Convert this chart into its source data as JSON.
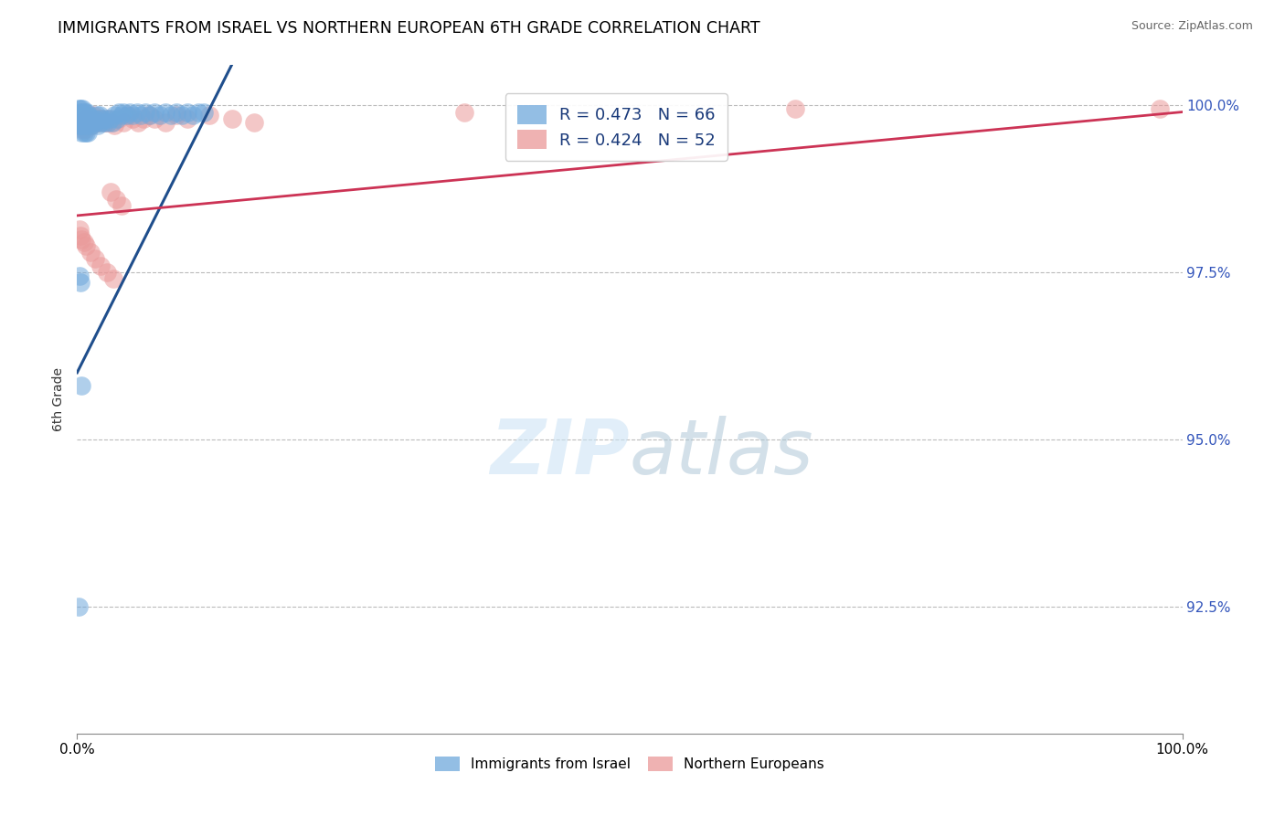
{
  "title": "IMMIGRANTS FROM ISRAEL VS NORTHERN EUROPEAN 6TH GRADE CORRELATION CHART",
  "source": "Source: ZipAtlas.com",
  "ylabel": "6th Grade",
  "xmin": 0.0,
  "xmax": 1.0,
  "ymin": 0.906,
  "ymax": 1.006,
  "yticks": [
    0.925,
    0.95,
    0.975,
    1.0
  ],
  "ytick_labels": [
    "92.5%",
    "95.0%",
    "97.5%",
    "100.0%"
  ],
  "blue_R": 0.473,
  "blue_N": 66,
  "pink_R": 0.424,
  "pink_N": 52,
  "blue_color": "#6fa8dc",
  "pink_color": "#ea9999",
  "blue_line_color": "#1f4e8c",
  "pink_line_color": "#cc3355",
  "legend_label_blue": "Immigrants from Israel",
  "legend_label_pink": "Northern Europeans",
  "blue_scatter_x": [
    0.001,
    0.001,
    0.002,
    0.002,
    0.002,
    0.003,
    0.003,
    0.003,
    0.004,
    0.004,
    0.005,
    0.005,
    0.005,
    0.006,
    0.006,
    0.007,
    0.007,
    0.008,
    0.008,
    0.009,
    0.009,
    0.01,
    0.01,
    0.011,
    0.012,
    0.013,
    0.014,
    0.015,
    0.016,
    0.017,
    0.018,
    0.019,
    0.02,
    0.021,
    0.022,
    0.024,
    0.026,
    0.028,
    0.03,
    0.032,
    0.034,
    0.036,
    0.038,
    0.04,
    0.042,
    0.045,
    0.048,
    0.05,
    0.054,
    0.058,
    0.062,
    0.066,
    0.07,
    0.075,
    0.08,
    0.085,
    0.09,
    0.095,
    0.1,
    0.105,
    0.11,
    0.115,
    0.002,
    0.003,
    0.001,
    0.004
  ],
  "blue_scatter_y": [
    0.9995,
    0.9985,
    0.999,
    0.998,
    0.997,
    0.9995,
    0.998,
    0.997,
    0.999,
    0.996,
    0.9995,
    0.998,
    0.997,
    0.9985,
    0.996,
    0.999,
    0.997,
    0.9985,
    0.996,
    0.999,
    0.997,
    0.9985,
    0.996,
    0.998,
    0.9975,
    0.997,
    0.998,
    0.9975,
    0.998,
    0.9975,
    0.9985,
    0.997,
    0.9985,
    0.9975,
    0.998,
    0.9975,
    0.998,
    0.9975,
    0.998,
    0.9975,
    0.9985,
    0.998,
    0.999,
    0.9985,
    0.999,
    0.9985,
    0.999,
    0.9985,
    0.999,
    0.9985,
    0.999,
    0.9985,
    0.999,
    0.9985,
    0.999,
    0.9985,
    0.999,
    0.9985,
    0.999,
    0.9985,
    0.999,
    0.999,
    0.9745,
    0.9735,
    0.925,
    0.958
  ],
  "pink_scatter_x": [
    0.001,
    0.002,
    0.003,
    0.004,
    0.005,
    0.006,
    0.007,
    0.008,
    0.009,
    0.01,
    0.011,
    0.013,
    0.015,
    0.017,
    0.019,
    0.022,
    0.025,
    0.028,
    0.031,
    0.034,
    0.038,
    0.042,
    0.046,
    0.05,
    0.055,
    0.06,
    0.065,
    0.07,
    0.08,
    0.09,
    0.1,
    0.12,
    0.14,
    0.16,
    0.02,
    0.025,
    0.03,
    0.035,
    0.04,
    0.002,
    0.003,
    0.004,
    0.006,
    0.008,
    0.012,
    0.016,
    0.021,
    0.027,
    0.033,
    0.35,
    0.65,
    0.98
  ],
  "pink_scatter_y": [
    0.9985,
    0.997,
    0.9975,
    0.9965,
    0.998,
    0.9965,
    0.997,
    0.9965,
    0.998,
    0.9975,
    0.9985,
    0.997,
    0.9985,
    0.9975,
    0.9975,
    0.998,
    0.9975,
    0.998,
    0.9975,
    0.997,
    0.998,
    0.9975,
    0.9985,
    0.998,
    0.9975,
    0.998,
    0.9985,
    0.998,
    0.9975,
    0.9985,
    0.998,
    0.9985,
    0.998,
    0.9975,
    0.998,
    0.9975,
    0.987,
    0.986,
    0.985,
    0.9815,
    0.9805,
    0.98,
    0.9795,
    0.979,
    0.978,
    0.977,
    0.976,
    0.975,
    0.974,
    0.999,
    0.9995,
    0.9995
  ],
  "blue_line_x0": 0.0,
  "blue_line_y0": 0.96,
  "blue_line_x1": 0.12,
  "blue_line_y1": 0.9995,
  "pink_line_x0": 0.0,
  "pink_line_y0": 0.9835,
  "pink_line_x1": 1.0,
  "pink_line_y1": 0.999
}
